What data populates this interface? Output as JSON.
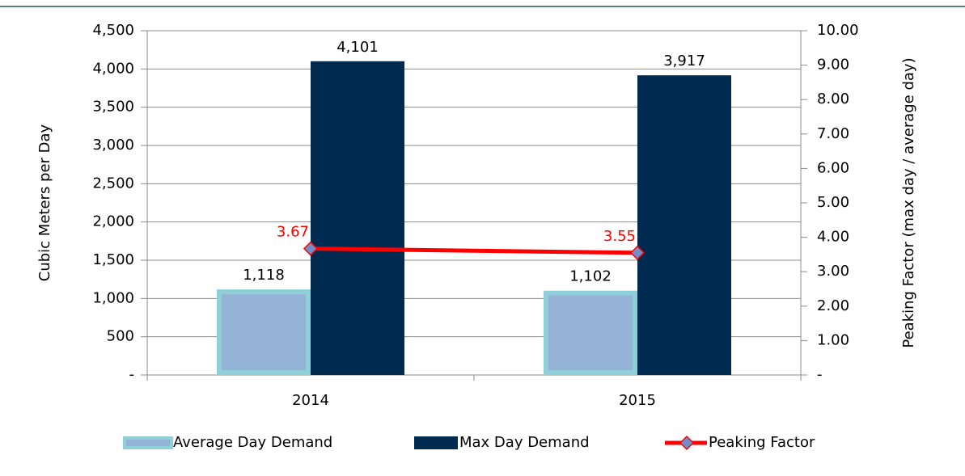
{
  "chart_data": {
    "type": "bar",
    "categories": [
      "2014",
      "2015"
    ],
    "ylabel": "Cubic Meters per Day",
    "y2label": "Peaking Factor (max day / average day)",
    "ylim": [
      0,
      4500
    ],
    "yticks": [
      {
        "value": 0,
        "label": "-"
      },
      500,
      {
        "value": 1000,
        "label": "1,000"
      },
      {
        "value": 1500,
        "label": "1,500"
      },
      {
        "value": 2000,
        "label": "2,000"
      },
      {
        "value": 2500,
        "label": "2,500"
      },
      {
        "value": 3000,
        "label": "3,000"
      },
      {
        "value": 3500,
        "label": "3,500"
      },
      {
        "value": 4000,
        "label": "4,000"
      },
      {
        "value": 4500,
        "label": "4,500"
      }
    ],
    "y2lim": [
      0,
      10
    ],
    "y2ticks": [
      {
        "value": 0,
        "label": "-"
      },
      {
        "value": 1,
        "label": "1.00"
      },
      {
        "value": 2,
        "label": "2.00"
      },
      {
        "value": 3,
        "label": "3.00"
      },
      {
        "value": 4,
        "label": "4.00"
      },
      {
        "value": 5,
        "label": "5.00"
      },
      {
        "value": 6,
        "label": "6.00"
      },
      {
        "value": 7,
        "label": "7.00"
      },
      {
        "value": 8,
        "label": "8.00"
      },
      {
        "value": 9,
        "label": "9.00"
      },
      {
        "value": 10,
        "label": "10.00"
      }
    ],
    "grid": true,
    "legend": "bottom",
    "series": [
      {
        "name": "Average Day Demand",
        "type": "bar",
        "color": "#95b3d7",
        "border_color": "#8ecfd8",
        "values": [
          1118,
          1102
        ],
        "value_labels": [
          "1,118",
          "1,102"
        ]
      },
      {
        "name": "Max Day Demand",
        "type": "bar",
        "color": "#012a50",
        "values": [
          4101,
          3917
        ],
        "value_labels": [
          "4,101",
          "3,917"
        ]
      },
      {
        "name": "Peaking Factor",
        "type": "line",
        "axis": "y2",
        "color": "#ff0000",
        "marker_color": "#6f8fca",
        "values": [
          3.67,
          3.55
        ]
      }
    ]
  }
}
